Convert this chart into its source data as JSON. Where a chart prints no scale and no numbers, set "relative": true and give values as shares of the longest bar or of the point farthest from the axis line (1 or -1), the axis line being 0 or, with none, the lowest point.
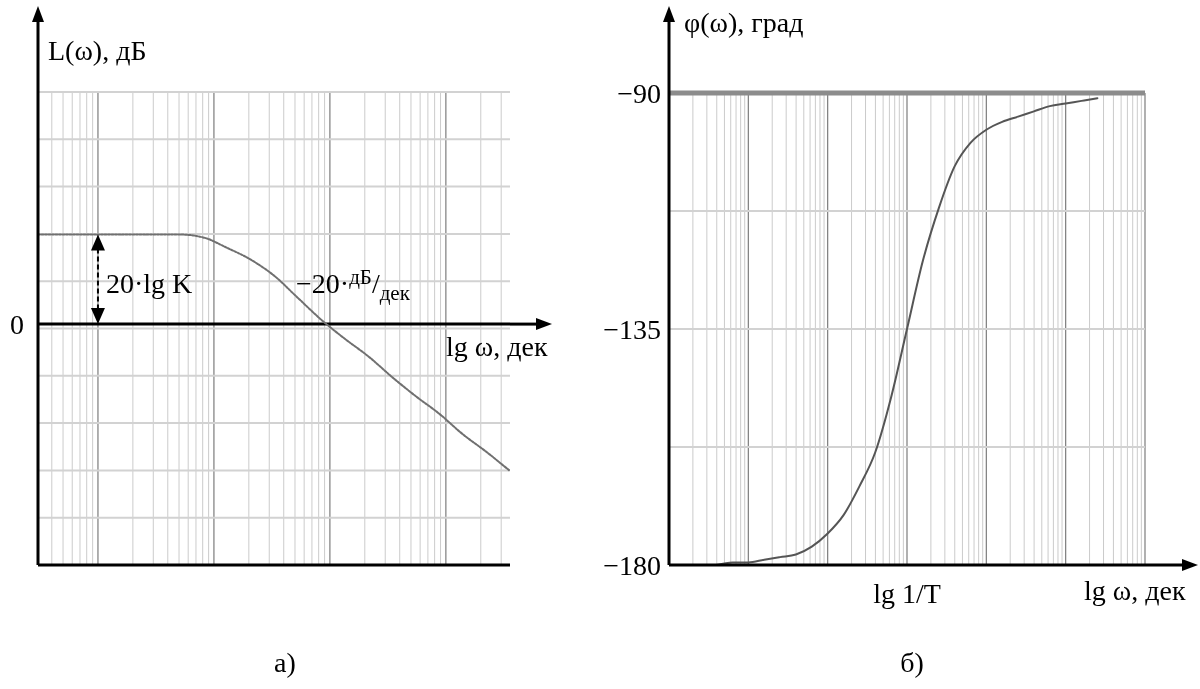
{
  "chart_data": [
    {
      "type": "line",
      "xlabel": "lg ω, дек",
      "ylabel": "L(ω), дБ",
      "relative": true,
      "categories": [
        null,
        null,
        null,
        null,
        null,
        null,
        null,
        null,
        null,
        null,
        null,
        null,
        null,
        null,
        null,
        null,
        null,
        null,
        null,
        null,
        null
      ],
      "series": [
        {
          "color": "#707070",
          "values": [
            0.61,
            0.61,
            0.61,
            0.61,
            0.61,
            0.61,
            0.61,
            0.59,
            0.52,
            0.44,
            0.33,
            0.18,
            0.03,
            -0.1,
            -0.22,
            -0.36,
            -0.49,
            -0.61,
            -0.75,
            -0.87,
            -1
          ]
        }
      ],
      "line_style": "dotted",
      "grid": true,
      "ref_lines": [
        {
          "axis": "y",
          "value": 0,
          "label": "0"
        }
      ],
      "annotations": [
        "20·lg K",
        "−20·$^{дБ}$/$_{дек}$",
        "а)"
      ]
    },
    {
      "type": "line",
      "xlabel": "lg ω, дек",
      "ylabel": "φ(ω), град",
      "categories": [
        null,
        null,
        null,
        null,
        null,
        null,
        null,
        null,
        null,
        null,
        null,
        null,
        null,
        null,
        null,
        "lg 1/T",
        null,
        null,
        null,
        null,
        null,
        null,
        null,
        null,
        null,
        null,
        null,
        null,
        null,
        null,
        null
      ],
      "series": [
        {
          "color": "#555555",
          "values": [
            null,
            null,
            null,
            -180,
            -179.5,
            -179.5,
            -179,
            -178.5,
            -178,
            -176.5,
            -174,
            -170.5,
            -165,
            -158.5,
            -148,
            -135,
            -122,
            -112,
            -104,
            -99.5,
            -97,
            -95.5,
            -94.5,
            -93.5,
            -92.5,
            -92,
            -91.5,
            -91,
            null,
            null,
            null
          ]
        }
      ],
      "ylim": [
        -180,
        -90
      ],
      "yticks": [
        -180,
        {
          "value": -157.5,
          "label": null
        },
        -135,
        {
          "value": -112.5,
          "label": null
        },
        -90
      ],
      "grid": true,
      "annotations": [
        "б)"
      ]
    }
  ]
}
